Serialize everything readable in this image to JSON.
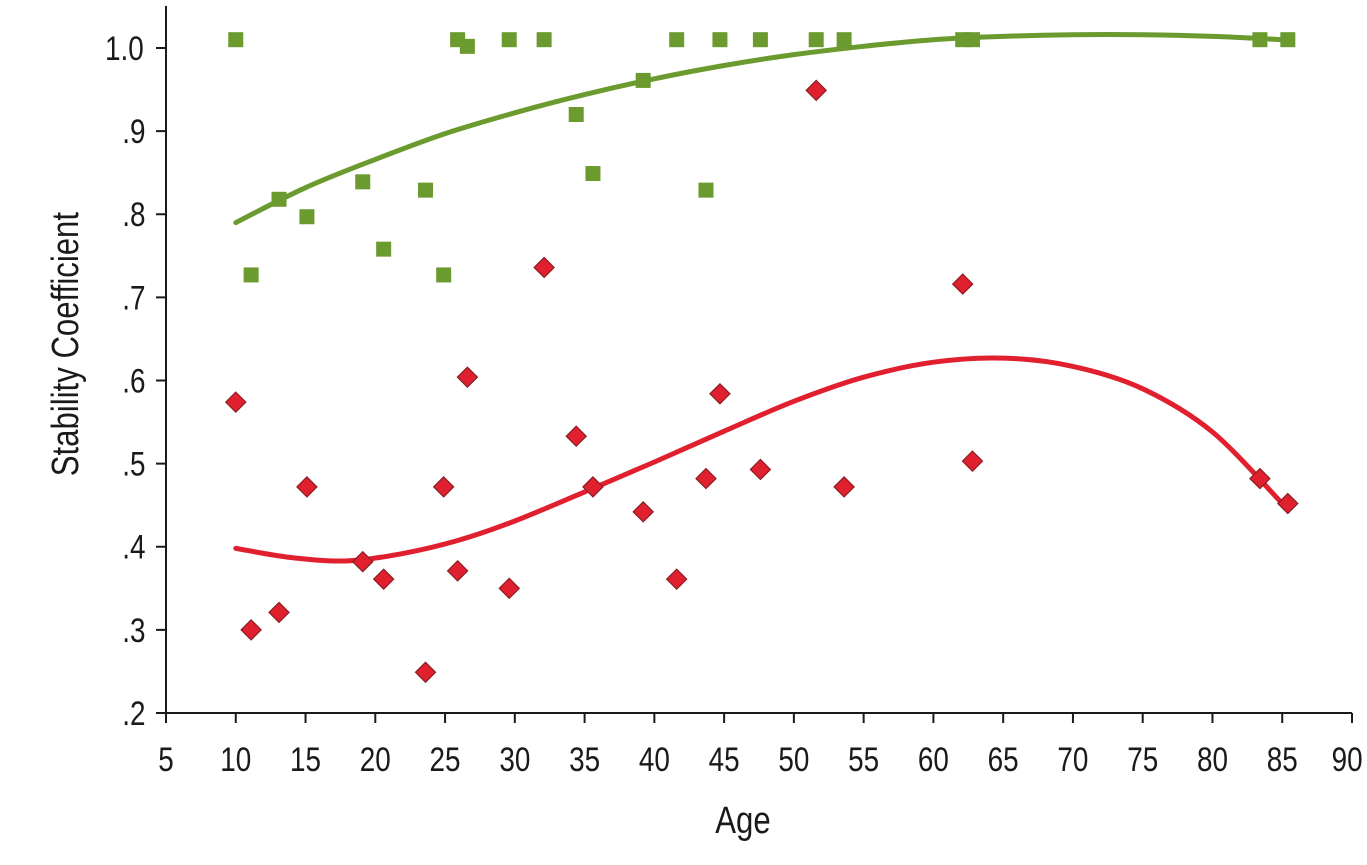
{
  "chart_data": {
    "type": "scatter",
    "xlabel": "Age",
    "ylabel": "Stability Coefficient",
    "xlim": [
      5,
      90
    ],
    "ylim": [
      0.2,
      1.0
    ],
    "x_ticks": [
      5,
      10,
      15,
      20,
      25,
      30,
      35,
      40,
      45,
      50,
      55,
      60,
      65,
      70,
      75,
      80,
      85,
      90
    ],
    "x_tick_labels": [
      "5",
      "10",
      "15",
      "20",
      "25",
      "30",
      "35",
      "40",
      "45",
      "50",
      "55",
      "60",
      "65",
      "70",
      "75",
      "80",
      "85",
      "90"
    ],
    "y_ticks": [
      0.2,
      0.3,
      0.4,
      0.5,
      0.6,
      0.7,
      0.8,
      0.9,
      1.0
    ],
    "y_tick_labels": [
      ".2",
      ".3",
      ".4",
      ".5",
      ".6",
      ".7",
      ".8",
      ".9",
      "1.0"
    ],
    "grid": false,
    "legend": "none",
    "series": [
      {
        "marker": "square",
        "color": "#6b9a2f",
        "points": [
          [
            10,
            1.01
          ],
          [
            11.1,
            0.727
          ],
          [
            13.1,
            0.818
          ],
          [
            15.1,
            0.797
          ],
          [
            19.1,
            0.839
          ],
          [
            20.6,
            0.758
          ],
          [
            23.6,
            0.829
          ],
          [
            24.9,
            0.727
          ],
          [
            25.9,
            1.01
          ],
          [
            26.6,
            1.002
          ],
          [
            29.6,
            1.01
          ],
          [
            32.1,
            1.01
          ],
          [
            34.4,
            0.92
          ],
          [
            35.6,
            0.849
          ],
          [
            39.2,
            0.961
          ],
          [
            41.6,
            1.01
          ],
          [
            43.7,
            0.829
          ],
          [
            44.7,
            1.01
          ],
          [
            47.6,
            1.01
          ],
          [
            51.6,
            1.01
          ],
          [
            53.6,
            1.01
          ],
          [
            62.1,
            1.01
          ],
          [
            62.8,
            1.01
          ],
          [
            83.4,
            1.01
          ],
          [
            85.4,
            1.01
          ]
        ],
        "trend_curve": [
          [
            10,
            0.79
          ],
          [
            15,
            0.832
          ],
          [
            20,
            0.866
          ],
          [
            25,
            0.897
          ],
          [
            30,
            0.922
          ],
          [
            35,
            0.944
          ],
          [
            40,
            0.963
          ],
          [
            45,
            0.979
          ],
          [
            50,
            0.992
          ],
          [
            55,
            1.002
          ],
          [
            60,
            1.01
          ],
          [
            65,
            1.014
          ],
          [
            70,
            1.016
          ],
          [
            75,
            1.016
          ],
          [
            80,
            1.014
          ],
          [
            85,
            1.01
          ]
        ]
      },
      {
        "marker": "diamond",
        "color": "#e0202e",
        "points": [
          [
            10,
            0.574
          ],
          [
            11.1,
            0.3
          ],
          [
            13.1,
            0.321
          ],
          [
            15.1,
            0.472
          ],
          [
            19.1,
            0.382
          ],
          [
            20.6,
            0.361
          ],
          [
            23.6,
            0.249
          ],
          [
            24.9,
            0.472
          ],
          [
            25.9,
            0.371
          ],
          [
            26.6,
            0.604
          ],
          [
            29.6,
            0.35
          ],
          [
            32.1,
            0.736
          ],
          [
            34.4,
            0.533
          ],
          [
            35.6,
            0.472
          ],
          [
            39.2,
            0.442
          ],
          [
            41.6,
            0.361
          ],
          [
            43.7,
            0.482
          ],
          [
            44.7,
            0.584
          ],
          [
            47.6,
            0.493
          ],
          [
            51.6,
            0.949
          ],
          [
            53.6,
            0.472
          ],
          [
            62.1,
            0.716
          ],
          [
            62.8,
            0.503
          ],
          [
            83.4,
            0.482
          ],
          [
            85.4,
            0.452
          ]
        ],
        "trend_curve": [
          [
            10,
            0.398
          ],
          [
            14,
            0.387
          ],
          [
            18,
            0.383
          ],
          [
            22,
            0.392
          ],
          [
            26,
            0.408
          ],
          [
            30,
            0.431
          ],
          [
            35,
            0.466
          ],
          [
            40,
            0.502
          ],
          [
            45,
            0.539
          ],
          [
            50,
            0.575
          ],
          [
            55,
            0.604
          ],
          [
            60,
            0.622
          ],
          [
            65,
            0.627
          ],
          [
            70,
            0.617
          ],
          [
            75,
            0.59
          ],
          [
            80,
            0.538
          ],
          [
            85,
            0.452
          ]
        ]
      }
    ]
  }
}
